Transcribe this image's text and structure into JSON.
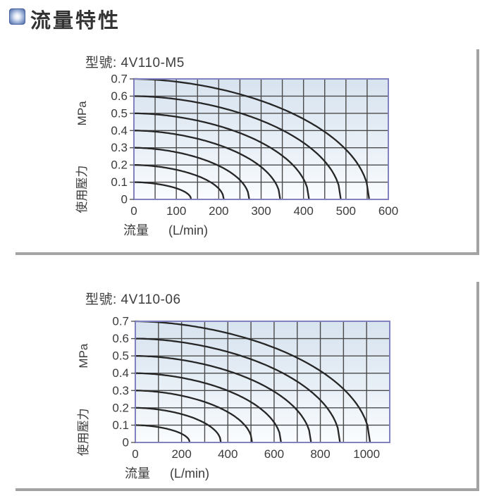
{
  "header": {
    "title": "流量特性",
    "icon": "blue-square-bullet-icon"
  },
  "colors": {
    "header_text": "#333333",
    "icon_blue": "#48649e",
    "panel_border": "#a3a3a3",
    "plot_border": "#8282c0",
    "grid": "#4a4a4a",
    "curve": "#262626",
    "plot_bg_top": "#d7e3ef",
    "plot_bg_mid": "#e9f0f7",
    "plot_bg_bottom": "#fafcfe",
    "text": "#3b3b3b"
  },
  "chart_data": [
    {
      "type": "line",
      "model": "4V110-M5",
      "title": "型號: 4V110-M5",
      "xlabel": "流量",
      "xunit": "(L/min)",
      "ylabel_unit": "MPa",
      "ylabel": "使用壓力",
      "xlim": [
        0,
        600
      ],
      "ylim": [
        0,
        0.7
      ],
      "x_ticks": [
        0,
        100,
        200,
        300,
        400,
        500,
        600
      ],
      "x_grid_step": 50,
      "y_ticks": [
        0.7,
        0.6,
        0.5,
        0.4,
        0.3,
        0.2,
        0.1,
        0
      ],
      "y_grid_step": 0.1,
      "grid": true,
      "series": [
        {
          "name": "0.7 MPa",
          "start_pressure_mpa": 0.7,
          "flow_at_zero_lmin": 555
        },
        {
          "name": "0.6 MPa",
          "start_pressure_mpa": 0.6,
          "flow_at_zero_lmin": 488
        },
        {
          "name": "0.5 MPa",
          "start_pressure_mpa": 0.5,
          "flow_at_zero_lmin": 413
        },
        {
          "name": "0.4 MPa",
          "start_pressure_mpa": 0.4,
          "flow_at_zero_lmin": 345
        },
        {
          "name": "0.3 MPa",
          "start_pressure_mpa": 0.3,
          "flow_at_zero_lmin": 272
        },
        {
          "name": "0.2 MPa",
          "start_pressure_mpa": 0.2,
          "flow_at_zero_lmin": 212
        },
        {
          "name": "0.1 MPa",
          "start_pressure_mpa": 0.1,
          "flow_at_zero_lmin": 135
        }
      ]
    },
    {
      "type": "line",
      "model": "4V110-06",
      "title": "型號: 4V110-06",
      "xlabel": "流量",
      "xunit": "(L/min)",
      "ylabel_unit": "MPa",
      "ylabel": "使用壓力",
      "xlim": [
        0,
        1100
      ],
      "ylim": [
        0,
        0.7
      ],
      "x_ticks": [
        0,
        200,
        400,
        600,
        800,
        1000
      ],
      "x_grid_step": 100,
      "y_ticks": [
        0.7,
        0.6,
        0.5,
        0.4,
        0.3,
        0.2,
        0.1,
        0
      ],
      "y_grid_step": 0.1,
      "grid": true,
      "series": [
        {
          "name": "0.7 MPa",
          "start_pressure_mpa": 0.7,
          "flow_at_zero_lmin": 1015
        },
        {
          "name": "0.6 MPa",
          "start_pressure_mpa": 0.6,
          "flow_at_zero_lmin": 885
        },
        {
          "name": "0.5 MPa",
          "start_pressure_mpa": 0.5,
          "flow_at_zero_lmin": 760
        },
        {
          "name": "0.4 MPa",
          "start_pressure_mpa": 0.4,
          "flow_at_zero_lmin": 630
        },
        {
          "name": "0.3 MPa",
          "start_pressure_mpa": 0.3,
          "flow_at_zero_lmin": 505
        },
        {
          "name": "0.2 MPa",
          "start_pressure_mpa": 0.2,
          "flow_at_zero_lmin": 370
        },
        {
          "name": "0.1 MPa",
          "start_pressure_mpa": 0.1,
          "flow_at_zero_lmin": 235
        }
      ]
    }
  ]
}
